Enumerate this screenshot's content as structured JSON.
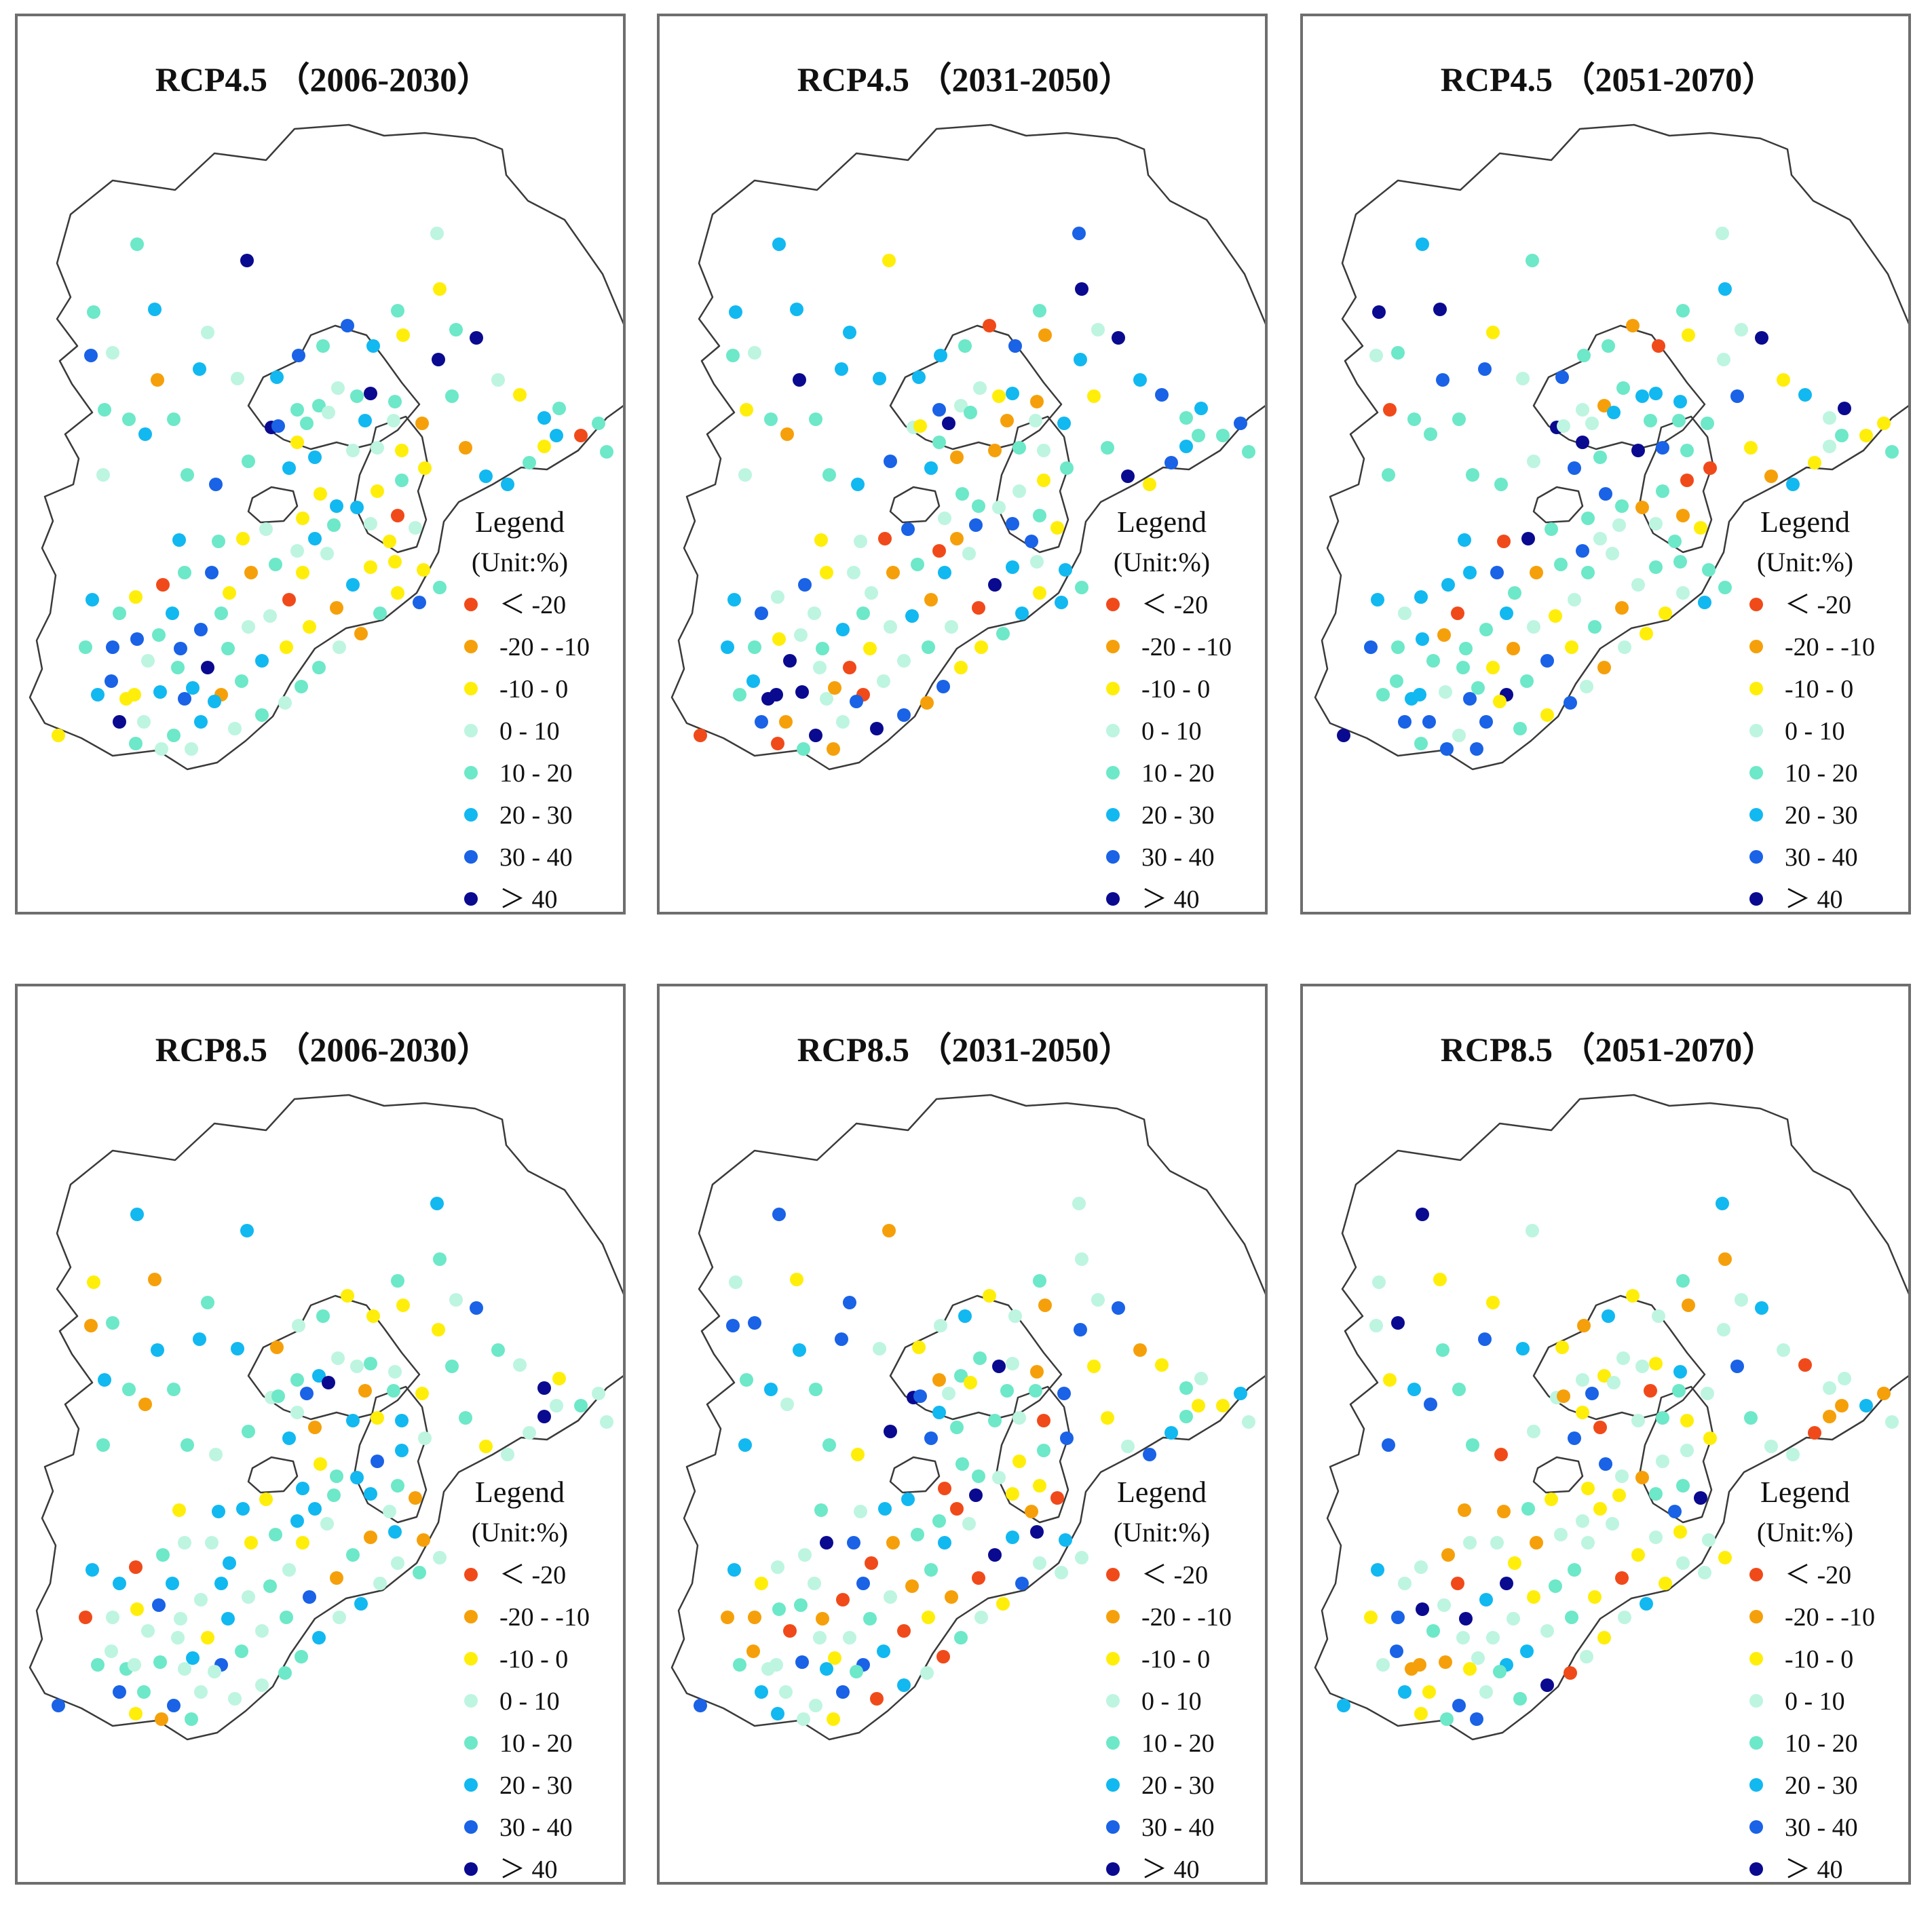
{
  "figure": {
    "panels": [
      {
        "id": "p1",
        "title": "RCP4.5 （2006-2030）",
        "variant": 0
      },
      {
        "id": "p2",
        "title": "RCP4.5 （2031-2050）",
        "variant": 1
      },
      {
        "id": "p3",
        "title": "RCP4.5 （2051-2070）",
        "variant": 2
      },
      {
        "id": "p4",
        "title": "RCP8.5 （2006-2030）",
        "variant": 3
      },
      {
        "id": "p5",
        "title": "RCP8.5 （2031-2050）",
        "variant": 4
      },
      {
        "id": "p6",
        "title": "RCP8.5 （2051-2070）",
        "variant": 5
      }
    ],
    "legend": {
      "title": "Legend",
      "unit": "(Unit:%)",
      "classes": [
        {
          "label": "＜ -20",
          "color": "#f04a1a"
        },
        {
          "label": "-20 - -10",
          "color": "#f5a00a"
        },
        {
          "label": "-10 - 0",
          "color": "#ffee0a"
        },
        {
          "label": "0 - 10",
          "color": "#bdf5e0"
        },
        {
          "label": "10 - 20",
          "color": "#6de8c8"
        },
        {
          "label": "20 - 30",
          "color": "#12b8f0"
        },
        {
          "label": "30 - 40",
          "color": "#1a62e6"
        },
        {
          "label": "＞ 40",
          "color": "#0a0a90"
        }
      ]
    },
    "map_colors": {
      "boundary": "#3a3a3a",
      "land": "#ffffff"
    }
  }
}
